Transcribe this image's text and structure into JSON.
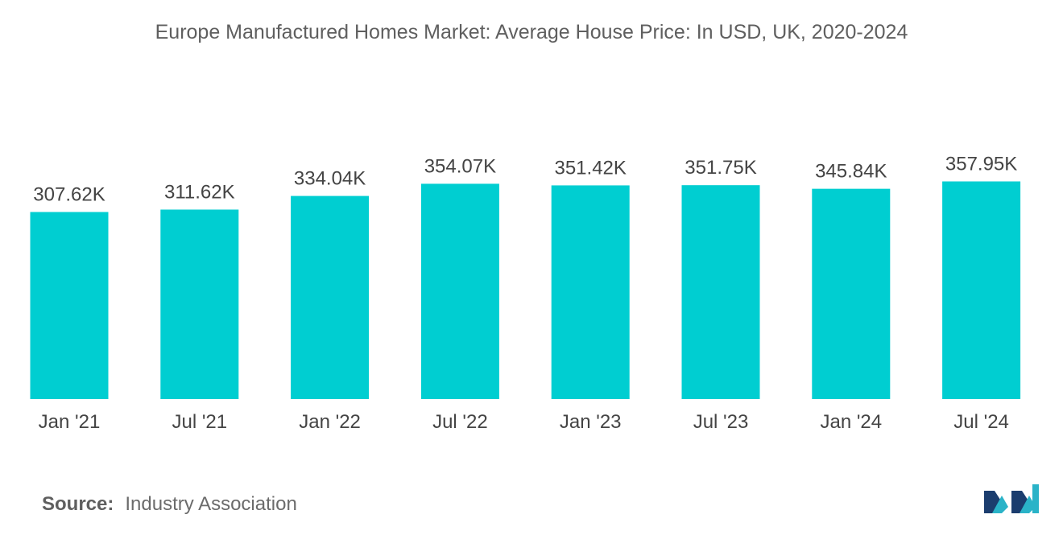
{
  "title": "Europe Manufactured Homes Market: Average House Price: In USD, UK, 2020-2024",
  "source": {
    "label": "Source:",
    "value": "Industry Association"
  },
  "logo": {
    "icon": "mordor-intelligence-logo-icon"
  },
  "colors": {
    "bar": "#00CED1",
    "text": "#444444",
    "logo_dark": "#1b3d6e",
    "logo_teal": "#2ab3c8"
  },
  "chart_data": {
    "type": "bar",
    "title": "Europe Manufactured Homes Market: Average House Price: In USD, UK, 2020-2024",
    "categories": [
      "Jan '21",
      "Jul '21",
      "Jan '22",
      "Jul '22",
      "Jan '23",
      "Jul '23",
      "Jan '24",
      "Jul '24"
    ],
    "values": [
      307.62,
      311.62,
      334.04,
      354.07,
      351.42,
      351.75,
      345.84,
      357.95
    ],
    "data_labels": [
      "307.62K",
      "311.62K",
      "334.04K",
      "354.07K",
      "351.42K",
      "351.75K",
      "345.84K",
      "357.95K"
    ],
    "unit": "K USD",
    "xlabel": "",
    "ylabel": "",
    "ylim": [
      0,
      400
    ],
    "grid": false,
    "legend": "none"
  }
}
